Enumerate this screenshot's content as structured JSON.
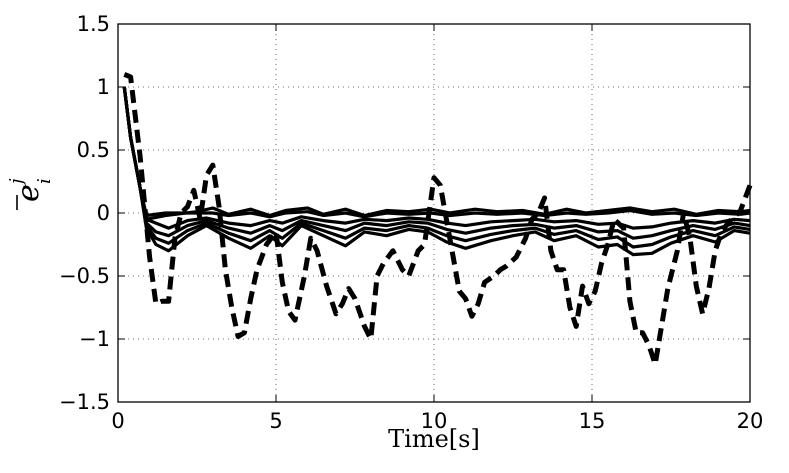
{
  "chart_data": {
    "type": "line",
    "xlabel": "Time[s]",
    "ylabel": {
      "base": "e",
      "subscript": "i",
      "superscript": "j"
    },
    "xlim": [
      0,
      20
    ],
    "ylim": [
      -1.5,
      1.5
    ],
    "xticks": [
      0,
      5,
      10,
      15,
      20
    ],
    "xtick_labels": [
      "0",
      "5",
      "10",
      "15",
      "20"
    ],
    "yticks": [
      -1.5,
      -1,
      -0.5,
      0,
      0.5,
      1,
      1.5
    ],
    "ytick_labels": [
      "−1.5",
      "−1",
      "−0.5",
      "0",
      "0.5",
      "1",
      "1.5"
    ],
    "grid": true,
    "series": [
      {
        "style": "dashed",
        "x": [
          0.2,
          0.4,
          0.7,
          1.0,
          1.2,
          1.4,
          1.6,
          1.8,
          2.0,
          2.2,
          2.4,
          2.6,
          2.8,
          3.0,
          3.2,
          3.4,
          3.6,
          3.8,
          4.0,
          4.2,
          4.4,
          4.7,
          5.0,
          5.2,
          5.4,
          5.6,
          5.9,
          6.1,
          6.3,
          6.6,
          6.9,
          7.1,
          7.3,
          7.5,
          7.8,
          8.0,
          8.2,
          8.4,
          8.7,
          9.0,
          9.2,
          9.5,
          9.7,
          10.0,
          10.2,
          10.5,
          10.8,
          11.0,
          11.2,
          11.4,
          11.6,
          11.9,
          12.1,
          12.3,
          12.6,
          12.9,
          13.1,
          13.3,
          13.5,
          13.7,
          13.9,
          14.1,
          14.3,
          14.5,
          14.7,
          14.9,
          15.1,
          15.3,
          15.5,
          15.7,
          16.0,
          16.2,
          16.4,
          16.6,
          16.8,
          17.0,
          17.2,
          17.4,
          17.7,
          17.9,
          18.1,
          18.3,
          18.5,
          18.7,
          18.9,
          19.1,
          19.3,
          19.5,
          19.7,
          20.0
        ],
        "y": [
          1.1,
          1.08,
          0.45,
          -0.35,
          -0.72,
          -0.7,
          -0.7,
          -0.2,
          0.0,
          0.05,
          0.18,
          -0.05,
          0.3,
          0.38,
          0.05,
          -0.45,
          -0.75,
          -0.98,
          -0.95,
          -0.68,
          -0.45,
          -0.25,
          -0.15,
          -0.55,
          -0.78,
          -0.85,
          -0.5,
          -0.2,
          -0.3,
          -0.58,
          -0.8,
          -0.72,
          -0.6,
          -0.68,
          -0.9,
          -1.0,
          -0.5,
          -0.4,
          -0.3,
          -0.45,
          -0.5,
          -0.3,
          -0.25,
          0.28,
          0.22,
          -0.2,
          -0.62,
          -0.68,
          -0.82,
          -0.72,
          -0.55,
          -0.5,
          -0.45,
          -0.42,
          -0.35,
          -0.2,
          -0.05,
          0.0,
          0.12,
          -0.3,
          -0.45,
          -0.45,
          -0.75,
          -0.9,
          -0.58,
          -0.72,
          -0.62,
          -0.4,
          -0.25,
          -0.05,
          -0.12,
          -0.7,
          -0.95,
          -0.95,
          -1.05,
          -1.2,
          -0.9,
          -0.6,
          -0.3,
          0.0,
          -0.2,
          -0.58,
          -0.8,
          -0.6,
          -0.3,
          -0.15,
          -0.08,
          -0.03,
          0.02,
          0.22
        ]
      },
      {
        "style": "solid",
        "x": [
          0.2,
          0.4,
          0.7,
          0.9,
          1.5,
          2.5,
          3.0,
          3.5,
          4.2,
          4.8,
          5.3,
          6.0,
          6.5,
          7.2,
          7.8,
          8.5,
          9.2,
          9.9,
          10.5,
          11.3,
          12.0,
          12.8,
          13.5,
          14.2,
          14.8,
          15.5,
          16.2,
          16.9,
          17.6,
          18.3,
          19.0,
          19.7,
          20.0
        ],
        "y": [
          1.0,
          0.6,
          0.2,
          -0.05,
          -0.02,
          0.01,
          0.04,
          -0.01,
          0.03,
          -0.02,
          0.02,
          0.04,
          -0.01,
          0.03,
          -0.02,
          0.02,
          0.01,
          0.03,
          0.0,
          0.03,
          0.01,
          0.02,
          -0.01,
          0.03,
          0.0,
          0.02,
          0.04,
          0.01,
          0.03,
          -0.01,
          0.02,
          0.01,
          0.02
        ]
      },
      {
        "style": "solid",
        "x": [
          0.2,
          0.4,
          0.7,
          0.9,
          1.5,
          2.5,
          3.0,
          3.5,
          4.2,
          4.8,
          5.3,
          6.0,
          6.5,
          7.2,
          7.8,
          8.5,
          9.2,
          9.9,
          10.5,
          11.3,
          12.0,
          12.8,
          13.5,
          14.2,
          14.8,
          15.5,
          16.2,
          16.9,
          17.6,
          18.3,
          19.0,
          19.7,
          20.0
        ],
        "y": [
          1.0,
          0.6,
          0.2,
          -0.02,
          0.0,
          0.0,
          0.0,
          -0.02,
          0.0,
          -0.03,
          0.0,
          0.01,
          -0.02,
          0.0,
          -0.03,
          0.0,
          -0.01,
          0.0,
          -0.02,
          0.0,
          -0.01,
          0.0,
          -0.02,
          0.0,
          -0.01,
          0.0,
          0.02,
          -0.01,
          0.0,
          -0.02,
          0.0,
          -0.01,
          0.0
        ]
      },
      {
        "style": "solid",
        "x": [
          0.2,
          0.4,
          0.7,
          0.9,
          1.2,
          1.6,
          2.2,
          2.8,
          3.5,
          4.2,
          4.8,
          5.2,
          5.8,
          6.5,
          7.2,
          7.8,
          8.5,
          9.2,
          9.8,
          10.4,
          11.0,
          11.8,
          12.5,
          13.2,
          13.8,
          14.5,
          15.2,
          15.8,
          16.3,
          16.9,
          17.5,
          18.2,
          18.9,
          19.5,
          20.0
        ],
        "y": [
          1.0,
          0.6,
          0.2,
          -0.05,
          -0.08,
          -0.12,
          -0.06,
          -0.04,
          -0.08,
          -0.1,
          -0.06,
          -0.08,
          -0.03,
          -0.06,
          -0.08,
          -0.05,
          -0.06,
          -0.04,
          -0.05,
          -0.08,
          -0.1,
          -0.07,
          -0.06,
          -0.05,
          -0.07,
          -0.06,
          -0.09,
          -0.08,
          -0.12,
          -0.11,
          -0.08,
          -0.06,
          -0.08,
          -0.05,
          -0.06
        ]
      },
      {
        "style": "solid",
        "x": [
          0.2,
          0.4,
          0.7,
          0.9,
          1.2,
          1.6,
          2.2,
          2.8,
          3.5,
          4.2,
          4.8,
          5.2,
          5.8,
          6.5,
          7.2,
          7.8,
          8.5,
          9.2,
          9.8,
          10.4,
          11.0,
          11.8,
          12.5,
          13.2,
          13.8,
          14.5,
          15.2,
          15.8,
          16.3,
          16.9,
          17.5,
          18.2,
          18.9,
          19.5,
          20.0
        ],
        "y": [
          1.0,
          0.6,
          0.2,
          -0.08,
          -0.15,
          -0.18,
          -0.1,
          -0.06,
          -0.12,
          -0.16,
          -0.1,
          -0.14,
          -0.06,
          -0.1,
          -0.14,
          -0.08,
          -0.1,
          -0.07,
          -0.08,
          -0.13,
          -0.16,
          -0.12,
          -0.1,
          -0.09,
          -0.12,
          -0.1,
          -0.15,
          -0.14,
          -0.2,
          -0.18,
          -0.14,
          -0.1,
          -0.13,
          -0.08,
          -0.1
        ]
      },
      {
        "style": "solid",
        "x": [
          0.2,
          0.4,
          0.7,
          0.9,
          1.2,
          1.6,
          2.2,
          2.8,
          3.5,
          4.2,
          4.8,
          5.2,
          5.8,
          6.5,
          7.2,
          7.8,
          8.5,
          9.2,
          9.8,
          10.4,
          11.0,
          11.8,
          12.5,
          13.2,
          13.8,
          14.5,
          15.2,
          15.8,
          16.3,
          16.9,
          17.5,
          18.2,
          18.9,
          19.5,
          20.0
        ],
        "y": [
          1.0,
          0.6,
          0.2,
          -0.1,
          -0.2,
          -0.24,
          -0.14,
          -0.08,
          -0.16,
          -0.22,
          -0.14,
          -0.2,
          -0.08,
          -0.14,
          -0.2,
          -0.12,
          -0.14,
          -0.1,
          -0.12,
          -0.18,
          -0.22,
          -0.17,
          -0.14,
          -0.12,
          -0.17,
          -0.14,
          -0.21,
          -0.19,
          -0.27,
          -0.25,
          -0.19,
          -0.14,
          -0.18,
          -0.11,
          -0.13
        ]
      },
      {
        "style": "solid",
        "x": [
          0.2,
          0.4,
          0.7,
          0.9,
          1.2,
          1.6,
          2.2,
          2.8,
          3.5,
          4.2,
          4.8,
          5.2,
          5.8,
          6.5,
          7.2,
          7.8,
          8.5,
          9.2,
          9.8,
          10.4,
          11.0,
          11.8,
          12.5,
          13.2,
          13.8,
          14.5,
          15.2,
          15.8,
          16.3,
          16.9,
          17.5,
          18.2,
          18.9,
          19.5,
          20.0
        ],
        "y": [
          1.0,
          0.6,
          0.2,
          -0.12,
          -0.25,
          -0.3,
          -0.18,
          -0.1,
          -0.2,
          -0.28,
          -0.18,
          -0.26,
          -0.1,
          -0.18,
          -0.26,
          -0.15,
          -0.18,
          -0.13,
          -0.15,
          -0.23,
          -0.28,
          -0.22,
          -0.18,
          -0.15,
          -0.22,
          -0.18,
          -0.27,
          -0.25,
          -0.33,
          -0.32,
          -0.24,
          -0.18,
          -0.23,
          -0.14,
          -0.16
        ]
      }
    ]
  }
}
